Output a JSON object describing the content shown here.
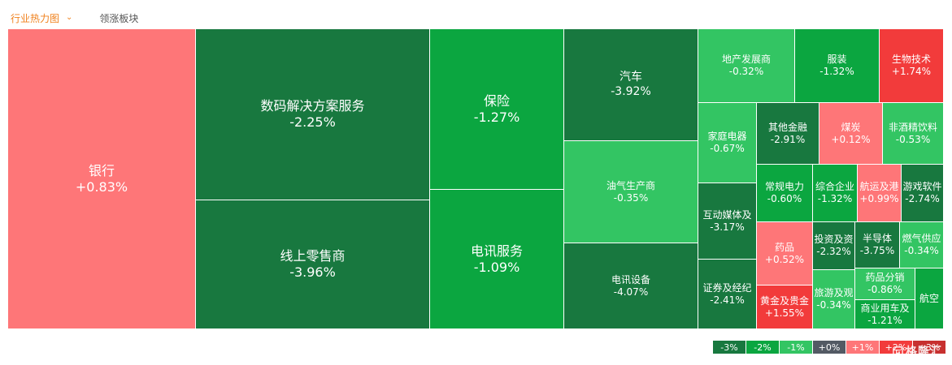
{
  "tabs": [
    {
      "label": "行业热力图",
      "active": true,
      "icon": "chevron-down-icon"
    },
    {
      "label": "领涨板块",
      "active": false
    }
  ],
  "colors": {
    "up_strong": "#f23b3b",
    "up_light": "#fe7678",
    "flat": "#535a64",
    "down_light": "#33c563",
    "down_mid": "#0ba640",
    "down_strong": "#18783f"
  },
  "sectors": [
    {
      "name": "银行",
      "change": "+0.83%"
    },
    {
      "name": "数码解决方案服务",
      "change": "-2.25%"
    },
    {
      "name": "线上零售商",
      "change": "-3.96%"
    },
    {
      "name": "保险",
      "change": "-1.27%"
    },
    {
      "name": "电讯服务",
      "change": "-1.09%"
    },
    {
      "name": "汽车",
      "change": "-3.92%"
    },
    {
      "name": "油气生产商",
      "change": "-0.35%"
    },
    {
      "name": "电讯设备",
      "change": "-4.07%"
    },
    {
      "name": "地产发展商",
      "change": "-0.32%"
    },
    {
      "name": "服装",
      "change": "-1.32%"
    },
    {
      "name": "生物技术",
      "change": "+1.74%"
    },
    {
      "name": "家庭电器",
      "change": "-0.67%"
    },
    {
      "name": "其他金融",
      "change": "-2.91%"
    },
    {
      "name": "煤炭",
      "change": "+0.12%"
    },
    {
      "name": "非酒精饮料",
      "change": "-0.53%"
    },
    {
      "name": "互动媒体及",
      "change": "-3.17%"
    },
    {
      "name": "常规电力",
      "change": "-0.60%"
    },
    {
      "name": "综合企业",
      "change": "-1.32%"
    },
    {
      "name": "航运及港",
      "change": "+0.99%"
    },
    {
      "name": "游戏软件",
      "change": "-2.74%"
    },
    {
      "name": "药品",
      "change": "+0.52%"
    },
    {
      "name": "投资及资",
      "change": "-2.32%"
    },
    {
      "name": "半导体",
      "change": "-3.75%"
    },
    {
      "name": "燃气供应",
      "change": "-0.34%"
    },
    {
      "name": "证券及经纪",
      "change": "-2.41%"
    },
    {
      "name": "黄金及贵金",
      "change": "+1.55%"
    },
    {
      "name": "旅游及观",
      "change": "-0.34%"
    },
    {
      "name": "药品分销",
      "change": "-0.86%"
    },
    {
      "name": "商业用车及",
      "change": "-1.21%"
    },
    {
      "name": "航空",
      "change": ""
    }
  ],
  "legend": [
    "-3%",
    "-2%",
    "-1%",
    "+0%",
    "+1%",
    "+2%",
    "+3%"
  ],
  "watermark": "格隆汇"
}
